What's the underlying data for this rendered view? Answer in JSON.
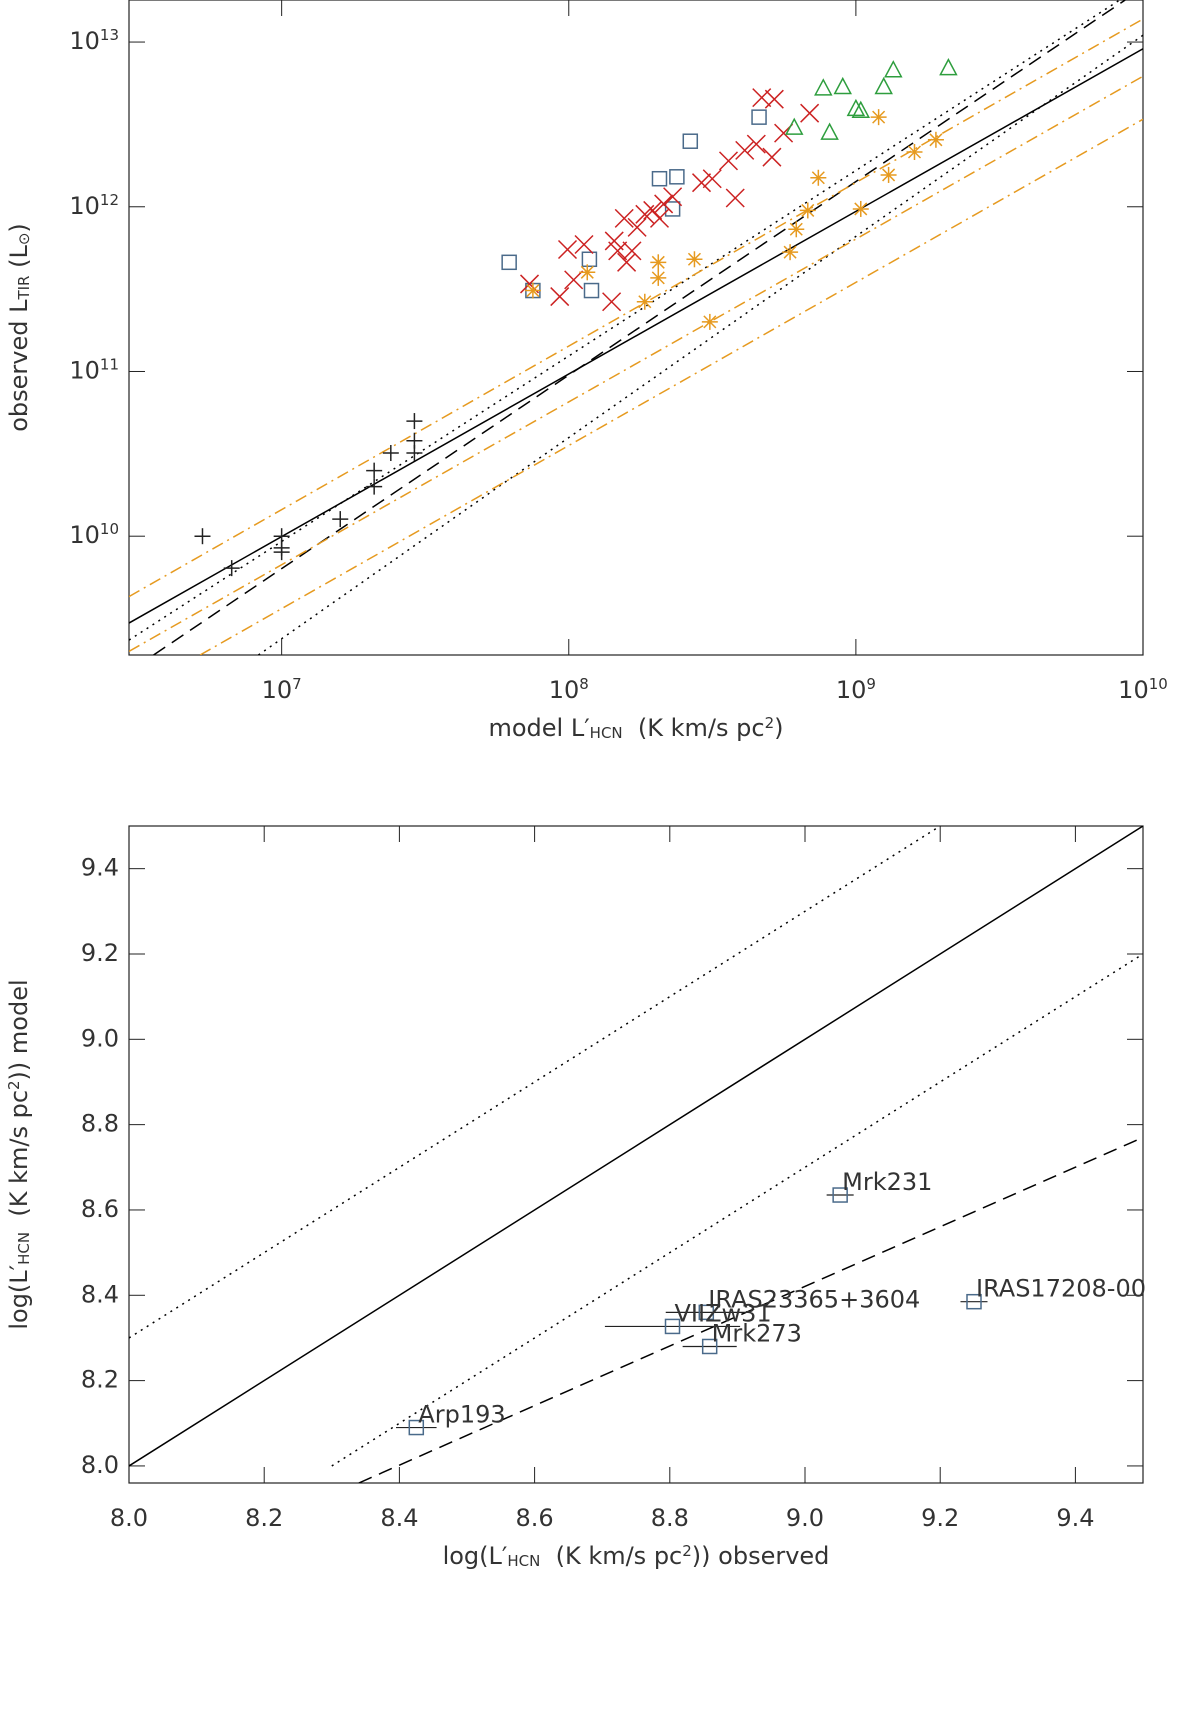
{
  "chart_data": [
    {
      "type": "scatter",
      "xlog": true,
      "ylog": true,
      "xlim": [
        2940000,
        10000000000
      ],
      "ylim": [
        1900000000,
        18000000000000
      ],
      "xticks": [
        {
          "value": 10000000,
          "label": "10",
          "exponent": "7"
        },
        {
          "value": 100000000,
          "label": "10",
          "exponent": "8"
        },
        {
          "value": 1000000000,
          "label": "10",
          "exponent": "9"
        },
        {
          "value": 10000000000,
          "label": "10",
          "exponent": "10"
        }
      ],
      "yticks": [
        {
          "value": 10000000000,
          "label": "10",
          "exponent": "10"
        },
        {
          "value": 100000000000,
          "label": "10",
          "exponent": "11"
        },
        {
          "value": 1000000000000,
          "label": "10",
          "exponent": "12"
        },
        {
          "value": 10000000000000,
          "label": "10",
          "exponent": "13"
        }
      ],
      "xlabel": [
        {
          "text": "model L′"
        },
        {
          "text": "HCN",
          "shift": "sub"
        },
        {
          "text": "  (K km/s pc"
        },
        {
          "text": "2",
          "shift": "sup"
        },
        {
          "text": ")"
        }
      ],
      "ylabel": [
        {
          "text": "observed L"
        },
        {
          "text": "TIR",
          "shift": "sub"
        },
        {
          "text": " (L"
        },
        {
          "text": "⊙",
          "shift": "sub"
        },
        {
          "text": ")"
        }
      ],
      "lines": [
        {
          "style": "solid",
          "color": "#000000",
          "x": [
            2940000,
            10000000000
          ],
          "y": [
            2970000000,
            9100000000000
          ]
        },
        {
          "style": "dashed",
          "color": "#000000",
          "x": [
            3580000,
            8670000000
          ],
          "y": [
            1900000000,
            18000000000000
          ]
        },
        {
          "style": "dotted",
          "color": "#000000",
          "x": [
            2940000,
            8300000000
          ],
          "y": [
            2340000000,
            18000000000000
          ]
        },
        {
          "style": "dotted",
          "color": "#000000",
          "x": [
            8300000,
            10000000000
          ],
          "y": [
            1900000000,
            11000000000000
          ]
        },
        {
          "style": "dashdot",
          "color": "#e69a1f",
          "x": [
            2940000,
            10000000000
          ],
          "y": [
            4300000000,
            13800000000000
          ]
        },
        {
          "style": "dashdot",
          "color": "#e69a1f",
          "x": [
            2940000,
            10000000000
          ],
          "y": [
            2000000000,
            6200000000000
          ]
        },
        {
          "style": "dashdot",
          "color": "#e69a1f",
          "x": [
            5200000,
            10000000000
          ],
          "y": [
            1900000000,
            3400000000000
          ]
        }
      ],
      "series": [
        {
          "marker": "plus",
          "color": "#222222",
          "x": [
            5300000,
            6700000,
            10000000,
            10000000,
            10000000,
            16000000,
            21000000,
            21000000,
            24000000,
            29000000,
            29000000,
            29000000
          ],
          "values": [
            10000000000,
            6400000000,
            10000000000,
            8500000000,
            8000000000,
            12700000000,
            20000000000,
            25000000000,
            32000000000,
            50000000000,
            38000000000,
            32000000000
          ]
        },
        {
          "marker": "square",
          "color": "#4a6a8a",
          "x": [
            62000000,
            75000000,
            118000000,
            120000000,
            207000000,
            238000000,
            230000000,
            265000000,
            460000000
          ],
          "values": [
            460000000000,
            310000000000,
            480000000000,
            310000000000,
            1480000000000,
            1520000000000,
            970000000000,
            2500000000000,
            3500000000000
          ]
        },
        {
          "marker": "cross",
          "color": "#cc2222",
          "x": [
            73000000,
            93000000,
            99000000,
            104000000,
            113000000,
            141000000,
            144000000,
            148000000,
            156000000,
            159000000,
            166000000,
            173000000,
            184000000,
            196000000,
            207000000,
            214000000,
            230000000,
            290000000,
            316000000,
            360000000,
            380000000,
            410000000,
            450000000,
            470000000,
            520000000,
            560000000,
            690000000,
            510000000
          ],
          "values": [
            340000000000,
            285000000000,
            550000000000,
            360000000000,
            590000000000,
            265000000000,
            620000000000,
            540000000000,
            850000000000,
            460000000000,
            540000000000,
            750000000000,
            900000000000,
            950000000000,
            850000000000,
            1040000000000,
            1150000000000,
            1400000000000,
            1480000000000,
            1900000000000,
            1130000000000,
            2200000000000,
            2400000000000,
            4600000000000,
            4500000000000,
            2800000000000,
            3700000000000,
            2000000000000
          ]
        },
        {
          "marker": "triangle",
          "color": "#2e9e3e",
          "x": [
            610000000,
            770000000,
            810000000,
            900000000,
            1000000000,
            1040000000,
            1250000000,
            1350000000,
            2100000000
          ],
          "values": [
            3000000000000,
            5200000000000,
            2800000000000,
            5300000000000,
            3900000000000,
            3800000000000,
            5300000000000,
            6700000000000,
            6900000000000
          ]
        },
        {
          "marker": "asterisk",
          "color": "#e69a1f",
          "x": [
            75000000,
            116000000,
            184000000,
            205000000,
            205000000,
            274000000,
            310000000,
            590000000,
            620000000,
            680000000,
            740000000,
            1040000000,
            1200000000,
            1300000000,
            1600000000,
            1900000000
          ],
          "values": [
            310000000000,
            400000000000,
            265000000000,
            460000000000,
            370000000000,
            480000000000,
            200000000000,
            530000000000,
            730000000000,
            950000000000,
            1500000000000,
            970000000000,
            3500000000000,
            1560000000000,
            2150000000000,
            2550000000000
          ]
        }
      ]
    },
    {
      "type": "scatter",
      "xlog": false,
      "ylog": false,
      "xlim": [
        8.0,
        9.5
      ],
      "ylim": [
        7.96,
        9.5
      ],
      "xticks": [
        {
          "value": 8,
          "label": "8.0"
        },
        8.2,
        8.4,
        8.6,
        8.8,
        {
          "value": 9,
          "label": "9.0"
        },
        9.2,
        9.4
      ],
      "yticks": [
        {
          "value": 8,
          "label": "8.0"
        },
        8.2,
        8.4,
        8.6,
        8.8,
        {
          "value": 9,
          "label": "9.0"
        },
        9.2,
        9.4
      ],
      "xlabel": [
        {
          "text": "log(L′"
        },
        {
          "text": "HCN",
          "shift": "sub"
        },
        {
          "text": "  (K km/s pc"
        },
        {
          "text": "2",
          "shift": "sup"
        },
        {
          "text": ")) observed"
        }
      ],
      "ylabel": [
        {
          "text": "log(L′"
        },
        {
          "text": "HCN",
          "shift": "sub"
        },
        {
          "text": "  (K km/s pc"
        },
        {
          "text": "2",
          "shift": "sup"
        },
        {
          "text": ")) model"
        }
      ],
      "lines": [
        {
          "style": "solid",
          "color": "#000000",
          "x": [
            7.96,
            9.5
          ],
          "y": [
            7.96,
            9.5
          ]
        },
        {
          "style": "dotted",
          "color": "#000000",
          "x": [
            8.0,
            9.2
          ],
          "y": [
            8.3,
            9.5
          ]
        },
        {
          "style": "dotted",
          "color": "#000000",
          "x": [
            8.3,
            9.5
          ],
          "y": [
            8.0,
            9.2
          ]
        },
        {
          "style": "dashed",
          "color": "#000000",
          "x": [
            8.34,
            9.5
          ],
          "y": [
            7.96,
            8.77
          ]
        }
      ],
      "series": [
        {
          "marker": "square",
          "color": "#4a6a8a",
          "x": [
            8.425,
            8.804,
            8.854,
            8.859,
            9.052,
            9.25
          ],
          "values": [
            8.09,
            8.327,
            8.36,
            8.28,
            8.635,
            8.385
          ],
          "xerr": [
            0.03,
            0.1,
            0.06,
            0.04,
            0.02,
            0.02
          ],
          "labels": [
            "Arp193",
            "VIIZw31",
            "IRAS23365+3604",
            "Mrk273",
            "Mrk231",
            "IRAS17208-00"
          ]
        }
      ]
    }
  ]
}
